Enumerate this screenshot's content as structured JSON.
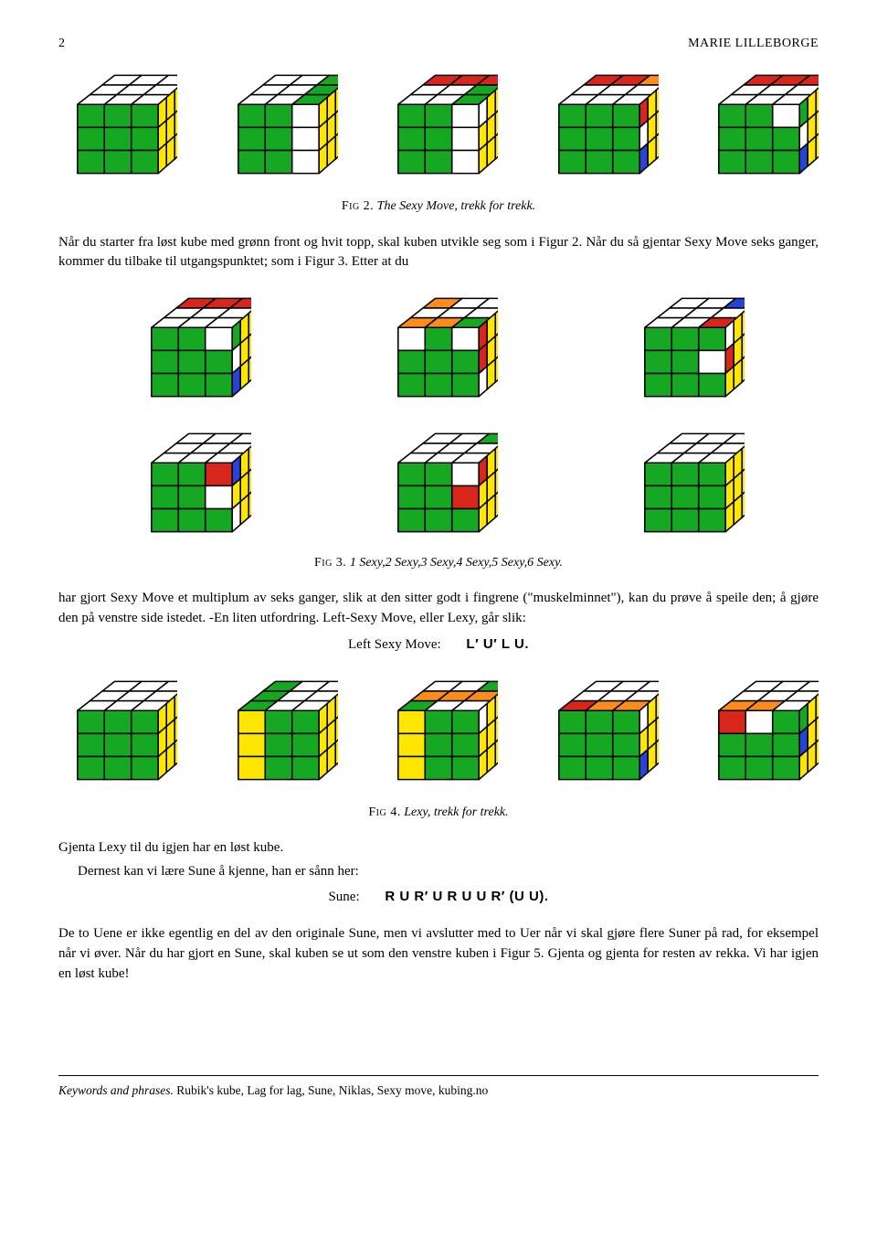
{
  "page_number": "2",
  "author": "MARIE LILLEBORGE",
  "colors": {
    "W": "#ffffff",
    "G": "#16a823",
    "Y": "#ffe600",
    "R": "#d9261c",
    "O": "#ff8c1a",
    "B": "#2642d9",
    "edge": "#000000"
  },
  "cube_style": {
    "stroke_width": 1.2,
    "top_skew": 0.46,
    "top_ratio": 0.36,
    "side_skew": 0.5,
    "side_ratio": 0.34
  },
  "fig2": {
    "caption_sc": "Fig 2.",
    "caption_rest": " The Sexy Move, trekk for trekk.",
    "cubes": [
      {
        "top": [
          "W",
          "W",
          "W",
          "W",
          "W",
          "W",
          "W",
          "W",
          "W"
        ],
        "front": [
          "G",
          "G",
          "G",
          "G",
          "G",
          "G",
          "G",
          "G",
          "G"
        ],
        "right": [
          "Y",
          "Y",
          "Y",
          "Y",
          "Y",
          "Y",
          "Y",
          "Y",
          "Y"
        ]
      },
      {
        "top": [
          "W",
          "W",
          "G",
          "W",
          "W",
          "G",
          "W",
          "W",
          "G"
        ],
        "front": [
          "G",
          "G",
          "W",
          "G",
          "G",
          "W",
          "G",
          "G",
          "W"
        ],
        "right": [
          "Y",
          "Y",
          "Y",
          "Y",
          "Y",
          "Y",
          "Y",
          "Y",
          "Y"
        ]
      },
      {
        "top": [
          "R",
          "R",
          "R",
          "W",
          "W",
          "G",
          "W",
          "W",
          "G"
        ],
        "front": [
          "G",
          "G",
          "W",
          "G",
          "G",
          "W",
          "G",
          "G",
          "W"
        ],
        "right": [
          "W",
          "Y",
          "Y",
          "Y",
          "Y",
          "Y",
          "Y",
          "Y",
          "Y"
        ]
      },
      {
        "top": [
          "R",
          "R",
          "O",
          "W",
          "W",
          "W",
          "W",
          "W",
          "W"
        ],
        "front": [
          "G",
          "G",
          "G",
          "G",
          "G",
          "G",
          "G",
          "G",
          "G"
        ],
        "right": [
          "R",
          "Y",
          "Y",
          "W",
          "Y",
          "Y",
          "B",
          "Y",
          "Y"
        ]
      },
      {
        "top": [
          "R",
          "R",
          "R",
          "W",
          "W",
          "W",
          "W",
          "W",
          "W"
        ],
        "front": [
          "G",
          "G",
          "W",
          "G",
          "G",
          "G",
          "G",
          "G",
          "G"
        ],
        "right": [
          "G",
          "Y",
          "Y",
          "W",
          "Y",
          "Y",
          "B",
          "Y",
          "Y"
        ]
      }
    ]
  },
  "para1": "Når du starter fra løst kube med grønn front og hvit topp, skal kuben utvikle seg som i Figur 2. Når du så gjentar Sexy Move seks ganger, kommer du tilbake til utgangspunktet; som i Figur 3. Etter at du",
  "fig3": {
    "caption_sc": "Fig 3.",
    "caption_rest": " 1 Sexy,2 Sexy,3 Sexy,4 Sexy,5 Sexy,6 Sexy.",
    "row1": [
      {
        "top": [
          "R",
          "R",
          "R",
          "W",
          "W",
          "W",
          "W",
          "W",
          "W"
        ],
        "front": [
          "G",
          "G",
          "W",
          "G",
          "G",
          "G",
          "G",
          "G",
          "G"
        ],
        "right": [
          "G",
          "Y",
          "Y",
          "W",
          "Y",
          "Y",
          "B",
          "Y",
          "Y"
        ]
      },
      {
        "top": [
          "O",
          "W",
          "W",
          "W",
          "W",
          "W",
          "O",
          "O",
          "G"
        ],
        "front": [
          "W",
          "G",
          "W",
          "G",
          "G",
          "G",
          "G",
          "G",
          "G"
        ],
        "right": [
          "R",
          "Y",
          "Y",
          "R",
          "Y",
          "Y",
          "W",
          "Y",
          "Y"
        ]
      },
      {
        "top": [
          "W",
          "W",
          "B",
          "W",
          "W",
          "W",
          "W",
          "W",
          "R"
        ],
        "front": [
          "G",
          "G",
          "G",
          "G",
          "G",
          "W",
          "G",
          "G",
          "G"
        ],
        "right": [
          "W",
          "Y",
          "Y",
          "R",
          "Y",
          "Y",
          "Y",
          "Y",
          "Y"
        ]
      }
    ],
    "row2": [
      {
        "top": [
          "W",
          "W",
          "W",
          "W",
          "W",
          "W",
          "W",
          "W",
          "W"
        ],
        "front": [
          "G",
          "G",
          "R",
          "G",
          "G",
          "W",
          "G",
          "G",
          "G"
        ],
        "right": [
          "B",
          "Y",
          "Y",
          "Y",
          "Y",
          "Y",
          "W",
          "Y",
          "Y"
        ]
      },
      {
        "top": [
          "W",
          "W",
          "G",
          "W",
          "W",
          "W",
          "W",
          "W",
          "W"
        ],
        "front": [
          "G",
          "G",
          "W",
          "G",
          "G",
          "R",
          "G",
          "G",
          "G"
        ],
        "right": [
          "R",
          "Y",
          "Y",
          "Y",
          "Y",
          "Y",
          "Y",
          "Y",
          "Y"
        ]
      },
      {
        "top": [
          "W",
          "W",
          "W",
          "W",
          "W",
          "W",
          "W",
          "W",
          "W"
        ],
        "front": [
          "G",
          "G",
          "G",
          "G",
          "G",
          "G",
          "G",
          "G",
          "G"
        ],
        "right": [
          "Y",
          "Y",
          "Y",
          "Y",
          "Y",
          "Y",
          "Y",
          "Y",
          "Y"
        ]
      }
    ]
  },
  "para2": "har gjort Sexy Move et multiplum av seks ganger, slik at den sitter godt i fingrene (\"muskelminnet\"), kan du prøve å speile den; å gjøre den på venstre side istedet. -En liten utfordring. Left-Sexy Move, eller Lexy, går slik:",
  "left_sexy": {
    "label": "Left Sexy Move:",
    "code": "L′ U′ L U."
  },
  "fig4": {
    "caption_sc": "Fig 4.",
    "caption_rest": " Lexy, trekk for trekk.",
    "cubes": [
      {
        "top": [
          "W",
          "W",
          "W",
          "W",
          "W",
          "W",
          "W",
          "W",
          "W"
        ],
        "front": [
          "G",
          "G",
          "G",
          "G",
          "G",
          "G",
          "G",
          "G",
          "G"
        ],
        "right": [
          "Y",
          "Y",
          "Y",
          "Y",
          "Y",
          "Y",
          "Y",
          "Y",
          "Y"
        ]
      },
      {
        "top": [
          "G",
          "W",
          "W",
          "G",
          "W",
          "W",
          "G",
          "W",
          "W"
        ],
        "front": [
          "Y",
          "G",
          "G",
          "Y",
          "G",
          "G",
          "Y",
          "G",
          "G"
        ],
        "right": [
          "Y",
          "Y",
          "Y",
          "Y",
          "Y",
          "Y",
          "Y",
          "Y",
          "Y"
        ]
      },
      {
        "top": [
          "W",
          "W",
          "G",
          "O",
          "O",
          "O",
          "G",
          "W",
          "W"
        ],
        "front": [
          "Y",
          "G",
          "G",
          "Y",
          "G",
          "G",
          "Y",
          "G",
          "G"
        ],
        "right": [
          "W",
          "Y",
          "Y",
          "Y",
          "Y",
          "Y",
          "Y",
          "Y",
          "Y"
        ]
      },
      {
        "top": [
          "W",
          "W",
          "W",
          "W",
          "W",
          "W",
          "R",
          "O",
          "O"
        ],
        "front": [
          "G",
          "G",
          "G",
          "G",
          "G",
          "G",
          "G",
          "G",
          "G"
        ],
        "right": [
          "W",
          "Y",
          "Y",
          "Y",
          "Y",
          "Y",
          "B",
          "Y",
          "Y"
        ]
      },
      {
        "top": [
          "W",
          "W",
          "W",
          "W",
          "W",
          "W",
          "O",
          "O",
          "W"
        ],
        "front": [
          "R",
          "W",
          "G",
          "G",
          "G",
          "G",
          "G",
          "G",
          "G"
        ],
        "right": [
          "G",
          "Y",
          "Y",
          "B",
          "Y",
          "Y",
          "Y",
          "Y",
          "Y"
        ]
      }
    ]
  },
  "para3": "Gjenta Lexy til du igjen har en løst kube.",
  "para4": "Dernest kan vi lære Sune å kjenne, han er sånn her:",
  "sune": {
    "label": "Sune:",
    "code": "R U R′ U R U U R′ (U U)."
  },
  "para5": "De to Uene er ikke egentlig en del av den originale Sune, men vi avslutter med to Uer når vi skal gjøre flere Suner på rad, for eksempel når vi øver. Når du har gjort en Sune, skal kuben se ut som den venstre kuben i Figur 5. Gjenta og gjenta for resten av rekka. Vi har igjen en løst kube!",
  "footer": {
    "label": "Keywords and phrases. ",
    "list": "Rubik's kube, Lag for lag, Sune, Niklas, Sexy move, kubing.no"
  }
}
